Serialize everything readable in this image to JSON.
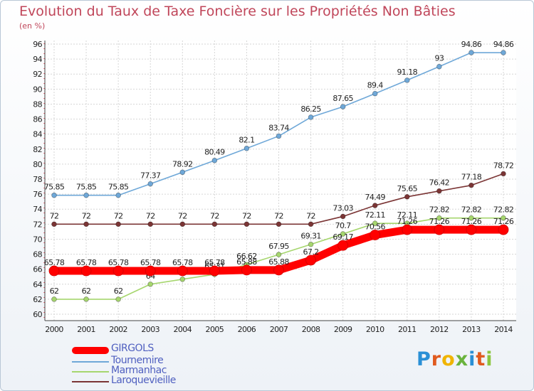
{
  "title": "Evolution du Taux de Taxe Foncière sur les Propriétés Non Bâties",
  "unit_label": "(en %)",
  "logo": {
    "letters": [
      "P",
      "r",
      "o",
      "x",
      "i",
      "t",
      "i"
    ],
    "colors": [
      "#2a8fd6",
      "#e05a1f",
      "#f0b400",
      "#6ab33d",
      "#2a8fd6",
      "#e05a1f",
      "#8cc63f"
    ]
  },
  "chart_data": {
    "type": "line",
    "x": [
      "2000",
      "2001",
      "2002",
      "2003",
      "2004",
      "2005",
      "2006",
      "2007",
      "2008",
      "2009",
      "2010",
      "2011",
      "2012",
      "2013",
      "2014"
    ],
    "ylim": [
      60,
      96
    ],
    "y_ticks": [
      60,
      62,
      64,
      66,
      68,
      70,
      72,
      74,
      76,
      78,
      80,
      82,
      84,
      86,
      88,
      90,
      92,
      94,
      96
    ],
    "grid": true,
    "legend_position": "bottom-left",
    "series": [
      {
        "name": "GIRGOLS",
        "color": "#ff0000",
        "values": [
          65.78,
          65.78,
          65.78,
          65.78,
          65.78,
          65.78,
          65.88,
          65.88,
          67.2,
          69.17,
          70.56,
          71.26,
          71.26,
          71.26,
          71.26
        ],
        "labels": [
          "65.78",
          "65.78",
          "65.78",
          "65.78",
          "65.78",
          "65.78",
          "65.88",
          "65.88",
          "67.2",
          "69.17",
          "70.56",
          "71.26",
          "71.26",
          "71.26",
          "71.26"
        ]
      },
      {
        "name": "Tournemire",
        "color": "#6fa8d8",
        "values": [
          75.85,
          75.85,
          75.85,
          77.37,
          78.92,
          80.49,
          82.1,
          83.74,
          86.25,
          87.65,
          89.4,
          91.18,
          93,
          94.86,
          94.86
        ],
        "labels": [
          "75.85",
          "75.85",
          "75.85",
          "77.37",
          "78.92",
          "80.49",
          "82.1",
          "83.74",
          "86.25",
          "87.65",
          "89.4",
          "91.18",
          "93",
          "94.86",
          "94.86"
        ]
      },
      {
        "name": "Marmanhac",
        "color": "#a6d66e",
        "values": [
          62,
          62,
          62,
          64,
          64.66,
          65.31,
          66.62,
          67.95,
          69.31,
          70.7,
          72.11,
          72.11,
          72.82,
          72.82,
          72.82
        ],
        "labels": [
          "62",
          "62",
          "62",
          "64",
          "64.66",
          "65.31",
          "66.62",
          "67.95",
          "69.31",
          "70.7",
          "72.11",
          "72.11",
          "72.82",
          "72.82",
          "72.82"
        ]
      },
      {
        "name": "Laroquevieille",
        "color": "#7b3535",
        "values": [
          72,
          72,
          72,
          72,
          72,
          72,
          72,
          72,
          72,
          73.03,
          74.49,
          75.65,
          76.42,
          77.18,
          78.72
        ],
        "labels": [
          "72",
          "72",
          "72",
          "72",
          "72",
          "72",
          "72",
          "72",
          "72",
          "73.03",
          "74.49",
          "75.65",
          "76.42",
          "77.18",
          "78.72"
        ]
      }
    ]
  }
}
